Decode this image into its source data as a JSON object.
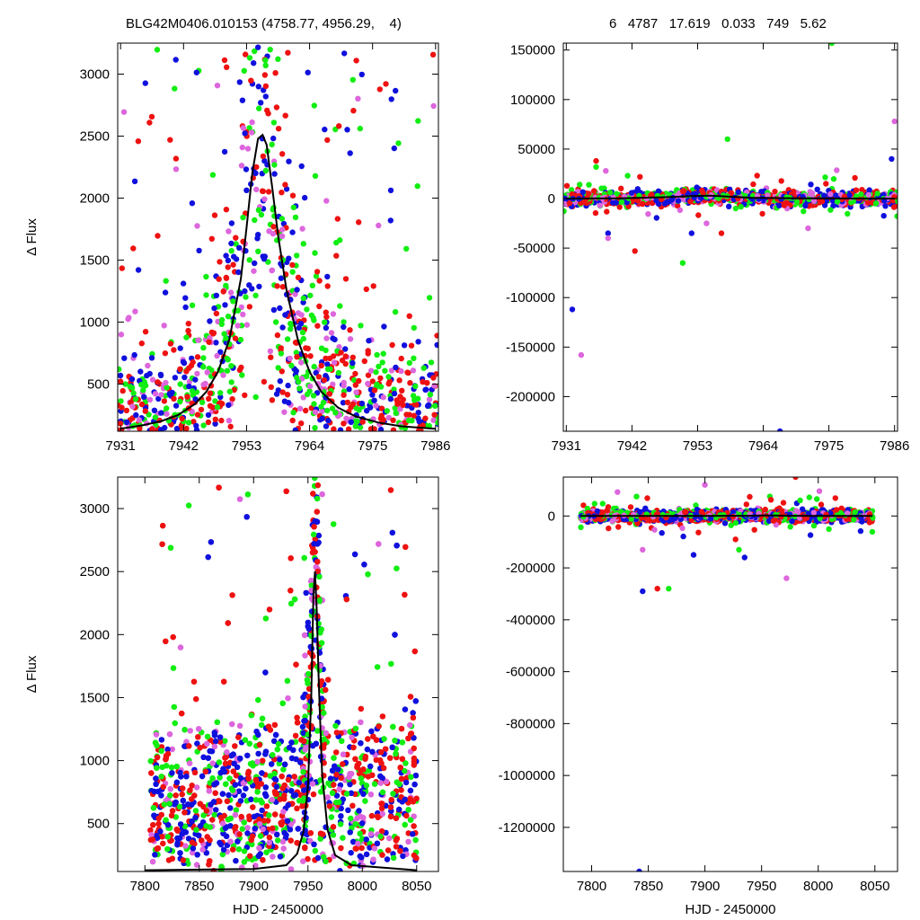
{
  "header": {
    "title": "BLG42M0406.010153 (4758.77, 4956.29,    4)",
    "stats": "6   4787   17.619   0.033   749   5.62"
  },
  "colors": {
    "red": "#ee1111",
    "violet": "#dd66dd",
    "blue": "#1010dd",
    "green": "#11ee11",
    "model": "#000000"
  },
  "chart_data": [
    {
      "type": "scatter",
      "panel": "top-left",
      "xlabel": "",
      "ylabel": "Δ Flux",
      "xlim": [
        7930.5,
        7986.5
      ],
      "ylim": [
        120,
        3250
      ],
      "xticks": [
        7931,
        7942,
        7953,
        7964,
        7975,
        7986
      ],
      "yticks": [
        500,
        1000,
        1500,
        2000,
        2500,
        3000
      ],
      "model": {
        "x": [
          7931,
          7935,
          7938,
          7941,
          7944,
          7946,
          7948,
          7950,
          7952,
          7953,
          7954,
          7955,
          7955.8,
          7956.5,
          7957.5,
          7958.5,
          7960,
          7962,
          7964,
          7966,
          7969,
          7972,
          7976,
          7980,
          7986
        ],
        "y": [
          140,
          170,
          200,
          250,
          340,
          440,
          600,
          860,
          1350,
          1760,
          2200,
          2480,
          2510,
          2430,
          2080,
          1700,
          1250,
          850,
          600,
          440,
          310,
          240,
          190,
          160,
          140
        ]
      }
    },
    {
      "type": "scatter",
      "panel": "top-right",
      "xlabel": "",
      "ylabel": "",
      "xlim": [
        7930.5,
        7986.5
      ],
      "ylim": [
        -235000,
        157000
      ],
      "xticks": [
        7931,
        7942,
        7953,
        7964,
        7975,
        7986
      ],
      "yticks": [
        150000,
        100000,
        50000,
        0,
        -50000,
        -100000,
        -150000,
        -200000
      ],
      "model": {
        "x": [
          7931,
          7940,
          7948,
          7952,
          7955,
          7958,
          7962,
          7970,
          7986
        ],
        "y": [
          0,
          200,
          1500,
          2500,
          3000,
          2000,
          800,
          200,
          0
        ]
      },
      "outliers": {
        "x": [
          7932,
          7933.5,
          7936,
          7936,
          7938,
          7938,
          7942.5,
          7950.5,
          7952,
          7954.5,
          7957,
          7958,
          7966.8,
          7971.5,
          7974.5,
          7975.5,
          7985.5,
          7986
        ],
        "y": [
          -112000,
          -158000,
          38000,
          32000,
          -35000,
          -40000,
          -53000,
          -65000,
          -35000,
          -25000,
          -35000,
          60000,
          -235000,
          -30000,
          15000,
          157000,
          40000,
          78000
        ]
      }
    },
    {
      "type": "scatter",
      "panel": "bottom-left",
      "xlabel": "HJD - 2450000",
      "ylabel": "Δ Flux",
      "xlim": [
        7775,
        8070
      ],
      "ylim": [
        120,
        3250
      ],
      "xticks": [
        7800,
        7850,
        7900,
        7950,
        8000,
        8050
      ],
      "yticks": [
        500,
        1000,
        1500,
        2000,
        2500,
        3000
      ],
      "model": {
        "x": [
          7800,
          7900,
          7930,
          7940,
          7946,
          7950,
          7953,
          7955,
          7956.5,
          7958,
          7960,
          7963,
          7968,
          7975,
          7990,
          8050
        ],
        "y": [
          130,
          140,
          170,
          260,
          440,
          800,
          1500,
          2300,
          2500,
          2200,
          1600,
          900,
          450,
          250,
          170,
          130
        ]
      }
    },
    {
      "type": "scatter",
      "panel": "bottom-right",
      "xlabel": "HJD - 2450000",
      "ylabel": "",
      "xlim": [
        7775,
        8070
      ],
      "ylim": [
        -1370000,
        150000
      ],
      "xticks": [
        7800,
        7850,
        7900,
        7950,
        8000,
        8050
      ],
      "yticks": [
        0,
        -200000,
        -400000,
        -600000,
        -800000,
        -1000000,
        -1200000
      ],
      "model": {
        "x": [
          7790,
          7900,
          7940,
          7955,
          7970,
          8000,
          8048
        ],
        "y": [
          0,
          0,
          1000,
          2500,
          1000,
          0,
          0
        ]
      },
      "outliers": {
        "x": [
          7845,
          7845,
          7858,
          7868,
          7890,
          7900,
          7927,
          7930,
          7935,
          7972,
          7980,
          7984,
          7842
        ],
        "y": [
          -290000,
          -130000,
          -280000,
          -280000,
          -150000,
          120000,
          -90000,
          -130000,
          -160000,
          -240000,
          150000,
          60000,
          -1370000
        ]
      }
    }
  ]
}
